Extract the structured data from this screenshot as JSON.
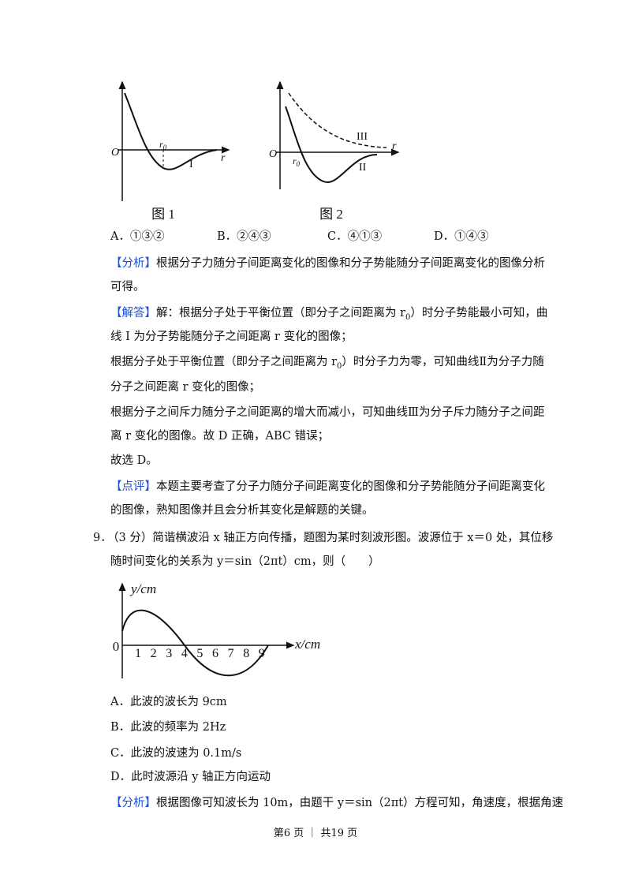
{
  "q8": {
    "fig1": {
      "origin": "O",
      "r0": "r",
      "r0_sub": "0",
      "axis": "r",
      "curve": "I",
      "caption": "图 1"
    },
    "fig2": {
      "origin": "O",
      "r0": "r",
      "r0_sub": "0",
      "axis": "r",
      "curve_dashed": "III",
      "curve_solid": "II",
      "caption": "图 2"
    },
    "options": [
      "A．①③②",
      "B．②④③",
      "C．④①③",
      "D．①④③"
    ],
    "analysis": {
      "tag": "【分析】",
      "lines": [
        [
          "根据分子力随分子间距离变化的图像和分子势能随分子间距离变化的图像分析"
        ],
        [
          "可得。"
        ]
      ]
    },
    "answer": {
      "tag": "【解答】",
      "lines": [
        [
          "解：根据分子处于平衡位置（即分子之间距离为 r",
          {
            "sub": "0"
          },
          "）时分子势能最小可知，曲"
        ],
        [
          "线 I 为分子势能随分子之间距离 r 变化的图像；"
        ],
        [
          "根据分子处于平衡位置（即分子之间距离为 r",
          {
            "sub": "0"
          },
          "）时分子力为零，可知曲线Ⅱ为分子力随"
        ],
        [
          "分子之间距离 r 变化的图像；"
        ],
        [
          "根据分子之间斥力随分子之间距离的增大而减小，可知曲线Ⅲ为分子斥力随分子之间距"
        ],
        [
          "离 r 变化的图像。故 D 正确，ABC 错误；"
        ],
        [
          "故选 D。"
        ]
      ]
    },
    "comment": {
      "tag": "【点评】",
      "lines": [
        [
          "本题主要考查了分子力随分子间距离变化的图像和分子势能随分子间距离变化"
        ],
        [
          "的图像，熟知图像并且会分析其变化是解题的关键。"
        ]
      ]
    }
  },
  "q9": {
    "number": "9．",
    "stem": [
      [
        "（3 分）简谐横波沿 x 轴正方向传播，题图为某时刻波形图。波源位于 x＝0 处，其位移"
      ],
      [
        "随时间变化的关系为 y＝sin（2πt）cm，则（　　）"
      ]
    ],
    "fig": {
      "y_label": "y/cm",
      "x_label": "x/cm",
      "origin": "0",
      "x_ticks": [
        "1",
        "2",
        "3",
        "4",
        "5",
        "6",
        "7",
        "8",
        "9"
      ]
    },
    "options": [
      "A．此波的波长为 9cm",
      "B．此波的频率为 2Hz",
      "C．此波的波速为 0.1m/s",
      "D．此时波源沿 y 轴正方向运动"
    ],
    "analysis": {
      "tag": "【分析】",
      "lines": [
        [
          "根据图像可知波长为 10m，由题干 y＝sin（2πt）方程可知，角速度，根据角速"
        ]
      ]
    }
  },
  "footer": "第6 页 ｜ 共19 页"
}
